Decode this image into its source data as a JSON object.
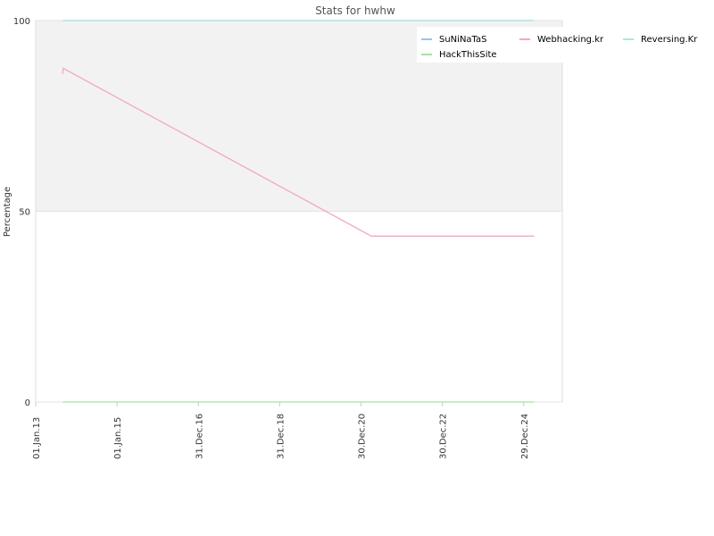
{
  "chart_data": {
    "type": "line",
    "title": "Stats for hwhw",
    "y_label": "Percentage",
    "x": [
      "2013-09-01",
      "2013-09-05",
      "2021-04-01",
      "2025-04-01"
    ],
    "series": [
      {
        "name": "SuNiNaTaS",
        "color": "#9ec3ea",
        "values": [
          100,
          100,
          100,
          100
        ]
      },
      {
        "name": "Webhacking.kr",
        "color": "#f4a6c8",
        "values": [
          86,
          87.5,
          43.5,
          43.5
        ]
      },
      {
        "name": "Reversing.Kr",
        "color": "#a8e6e0",
        "values": [
          100,
          100,
          100,
          100
        ]
      },
      {
        "name": "HackThisSite",
        "color": "#a6e3a0",
        "values": [
          0,
          0,
          0,
          0
        ]
      }
    ],
    "xlim": [
      "2013-01-01",
      "2025-12-10"
    ],
    "xticks": [
      {
        "value": "2013-01-01",
        "label": "01.Jan.13"
      },
      {
        "value": "2015-01-01",
        "label": "01.Jan.15"
      },
      {
        "value": "2016-12-31",
        "label": "31.Dec.16"
      },
      {
        "value": "2018-12-31",
        "label": "31.Dec.18"
      },
      {
        "value": "2020-12-30",
        "label": "30.Dec.20"
      },
      {
        "value": "2022-12-30",
        "label": "30.Dec.22"
      },
      {
        "value": "2024-12-29",
        "label": "29.Dec.24"
      }
    ],
    "ylim": [
      0,
      100
    ],
    "yticks": [
      0,
      50,
      100
    ],
    "band_ylim": [
      50,
      100
    ],
    "legend": "top-right"
  }
}
